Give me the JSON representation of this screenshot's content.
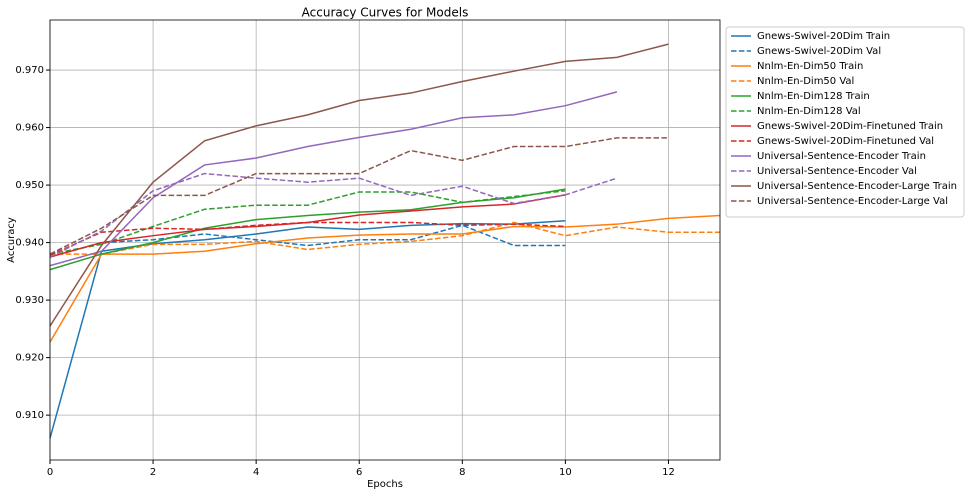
{
  "chart_data": {
    "type": "line",
    "title": "Accuracy Curves for Models",
    "xlabel": "Epochs",
    "ylabel": "Accuracy",
    "xlim": [
      0,
      13
    ],
    "ylim": [
      0.9022,
      0.9787
    ],
    "xticks": [
      0,
      2,
      4,
      6,
      8,
      10,
      12
    ],
    "yticks": [
      {
        "value": 0.91,
        "label": "0.910"
      },
      {
        "value": 0.92,
        "label": "0.920"
      },
      {
        "value": 0.93,
        "label": "0.930"
      },
      {
        "value": 0.94,
        "label": "0.940"
      },
      {
        "value": 0.95,
        "label": "0.950"
      },
      {
        "value": 0.96,
        "label": "0.960"
      },
      {
        "value": 0.97,
        "label": "0.970"
      }
    ],
    "grid": true,
    "legend": "outside-upper-right",
    "series": [
      {
        "name": "Gnews-Swivel-20Dim Train",
        "color": "#1f77b4",
        "linestyle": "solid",
        "x": [
          0,
          1,
          2,
          3,
          4,
          5,
          6,
          7,
          8,
          9,
          10
        ],
        "values": [
          0.906,
          0.9385,
          0.9398,
          0.9405,
          0.9415,
          0.9427,
          0.9423,
          0.943,
          0.9433,
          0.9432,
          0.9438
        ]
      },
      {
        "name": "Gnews-Swivel-20Dim Val",
        "color": "#1f77b4",
        "linestyle": "dashed",
        "x": [
          0,
          1,
          2,
          3,
          4,
          5,
          6,
          7,
          8,
          9,
          10
        ],
        "values": [
          0.9375,
          0.94,
          0.9405,
          0.9415,
          0.9405,
          0.9395,
          0.9405,
          0.9405,
          0.943,
          0.9395,
          0.9395
        ]
      },
      {
        "name": "Nnlm-En-Dim50 Train",
        "color": "#ff7f0e",
        "linestyle": "solid",
        "x": [
          0,
          1,
          2,
          3,
          4,
          5,
          6,
          7,
          8,
          9,
          10,
          11,
          12,
          13
        ],
        "values": [
          0.9227,
          0.938,
          0.938,
          0.9385,
          0.9398,
          0.9408,
          0.9413,
          0.9415,
          0.9415,
          0.9428,
          0.9427,
          0.9432,
          0.9442,
          0.9447
        ]
      },
      {
        "name": "Nnlm-En-Dim50 Val",
        "color": "#ff7f0e",
        "linestyle": "dashed",
        "x": [
          0,
          1,
          2,
          3,
          4,
          5,
          6,
          7,
          8,
          9,
          10,
          11,
          12,
          13
        ],
        "values": [
          0.938,
          0.938,
          0.9397,
          0.9397,
          0.9402,
          0.9388,
          0.9397,
          0.9402,
          0.9412,
          0.9435,
          0.9412,
          0.9427,
          0.9418,
          0.9418
        ]
      },
      {
        "name": "Nnlm-En-Dim128 Train",
        "color": "#2ca02c",
        "linestyle": "solid",
        "x": [
          0,
          1,
          2,
          3,
          4,
          5,
          6,
          7,
          8,
          9,
          10
        ],
        "values": [
          0.9353,
          0.938,
          0.94,
          0.9425,
          0.944,
          0.9447,
          0.9453,
          0.9457,
          0.947,
          0.9478,
          0.9493
        ]
      },
      {
        "name": "Nnlm-En-Dim128 Val",
        "color": "#2ca02c",
        "linestyle": "dashed",
        "x": [
          0,
          1,
          2,
          3,
          4,
          5,
          6,
          7,
          8,
          9,
          10
        ],
        "values": [
          0.938,
          0.9397,
          0.9428,
          0.9458,
          0.9465,
          0.9465,
          0.9488,
          0.9488,
          0.947,
          0.948,
          0.949
        ]
      },
      {
        "name": "Gnews-Swivel-20Dim-Finetuned Train",
        "color": "#d62728",
        "linestyle": "solid",
        "x": [
          0,
          1,
          2,
          3,
          4,
          5,
          6,
          7,
          8,
          9,
          10
        ],
        "values": [
          0.9375,
          0.94,
          0.9412,
          0.9423,
          0.9428,
          0.9435,
          0.9448,
          0.9455,
          0.9462,
          0.9467,
          0.9483
        ]
      },
      {
        "name": "Gnews-Swivel-20Dim-Finetuned Val",
        "color": "#d62728",
        "linestyle": "dashed",
        "x": [
          0,
          1,
          2,
          3,
          4,
          5,
          6,
          7,
          8,
          9,
          10
        ],
        "values": [
          0.9378,
          0.9418,
          0.9425,
          0.9423,
          0.943,
          0.9435,
          0.9435,
          0.9435,
          0.943,
          0.9432,
          0.9428
        ]
      },
      {
        "name": "Universal-Sentence-Encoder Train",
        "color": "#9467bd",
        "linestyle": "solid",
        "x": [
          0,
          1,
          2,
          3,
          4,
          5,
          6,
          7,
          8,
          9,
          10,
          11
        ],
        "values": [
          0.936,
          0.9385,
          0.9478,
          0.9535,
          0.9547,
          0.9567,
          0.9583,
          0.9597,
          0.9617,
          0.9622,
          0.9638,
          0.9662
        ]
      },
      {
        "name": "Universal-Sentence-Encoder Val",
        "color": "#9467bd",
        "linestyle": "dashed",
        "x": [
          0,
          1,
          2,
          3,
          4,
          5,
          6,
          7,
          8,
          9,
          10,
          11
        ],
        "values": [
          0.9375,
          0.942,
          0.949,
          0.952,
          0.9512,
          0.9505,
          0.9512,
          0.9482,
          0.9498,
          0.9468,
          0.9483,
          0.9512
        ]
      },
      {
        "name": "Universal-Sentence-Encoder-Large Train",
        "color": "#8c564b",
        "linestyle": "solid",
        "x": [
          0,
          1,
          2,
          3,
          4,
          5,
          6,
          7,
          8,
          9,
          10,
          11,
          12
        ],
        "values": [
          0.9255,
          0.9395,
          0.9505,
          0.9577,
          0.9603,
          0.9622,
          0.9647,
          0.966,
          0.968,
          0.9698,
          0.9715,
          0.9722,
          0.9745
        ]
      },
      {
        "name": "Universal-Sentence-Encoder-Large Val",
        "color": "#8c564b",
        "linestyle": "dashed",
        "x": [
          0,
          1,
          2,
          3,
          4,
          5,
          6,
          7,
          8,
          9,
          10,
          11,
          12
        ],
        "values": [
          0.938,
          0.9425,
          0.9482,
          0.9482,
          0.952,
          0.952,
          0.952,
          0.956,
          0.9543,
          0.9567,
          0.9567,
          0.9582,
          0.9582
        ]
      }
    ]
  }
}
